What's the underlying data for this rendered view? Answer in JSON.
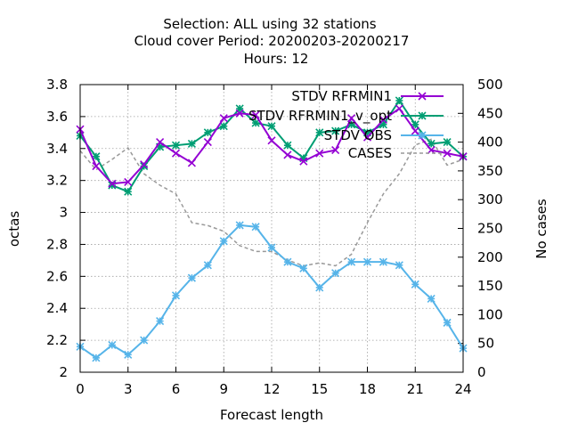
{
  "title_lines": [
    "Selection: ALL using    32 stations",
    "Cloud cover   Period: 20200203-20200217",
    "Hours:  12"
  ],
  "chart_data": {
    "type": "line",
    "xlabel": "Forecast length",
    "ylabel": "octas",
    "y2label": "No cases",
    "xlim": [
      0,
      24
    ],
    "ylim": [
      2.0,
      3.8
    ],
    "y2lim": [
      0,
      500
    ],
    "xticks": [
      "0",
      "3",
      "6",
      "9",
      "12",
      "15",
      "18",
      "21",
      "24"
    ],
    "yticks": [
      "2",
      "2.2",
      "2.4",
      "2.6",
      "2.8",
      "3",
      "3.2",
      "3.4",
      "3.6",
      "3.8"
    ],
    "y2ticks": [
      "0",
      "50",
      "100",
      "150",
      "200",
      "250",
      "300",
      "350",
      "400",
      "450",
      "500"
    ],
    "grid": true,
    "legend_position": "top-right",
    "x": [
      0,
      1,
      2,
      3,
      4,
      5,
      6,
      7,
      8,
      9,
      10,
      11,
      12,
      13,
      14,
      15,
      16,
      17,
      18,
      19,
      20,
      21,
      22,
      23,
      24
    ],
    "series": [
      {
        "name": "STDV RFRMIN1",
        "color": "#9400d3",
        "marker": "x-cross",
        "values": [
          3.52,
          3.29,
          3.18,
          3.19,
          3.3,
          3.44,
          3.37,
          3.31,
          3.44,
          3.59,
          3.62,
          3.61,
          3.45,
          3.36,
          3.32,
          3.37,
          3.39,
          3.59,
          3.47,
          3.58,
          3.65,
          3.51,
          3.39,
          3.37,
          3.35
        ]
      },
      {
        "name": "STDV RFRMIN1_v_opt",
        "color": "#009e73",
        "marker": "x-star",
        "values": [
          3.48,
          3.35,
          3.17,
          3.13,
          3.29,
          3.41,
          3.42,
          3.43,
          3.5,
          3.54,
          3.65,
          3.56,
          3.54,
          3.42,
          3.34,
          3.5,
          3.51,
          3.55,
          3.5,
          3.55,
          3.7,
          3.55,
          3.43,
          3.44,
          3.35
        ]
      },
      {
        "name": "STDV OBS",
        "color": "#56b4e9",
        "marker": "star",
        "values": [
          2.16,
          2.09,
          2.17,
          2.11,
          2.2,
          2.32,
          2.48,
          2.59,
          2.67,
          2.82,
          2.92,
          2.91,
          2.78,
          2.69,
          2.65,
          2.53,
          2.62,
          2.69,
          2.69,
          2.69,
          2.67,
          2.55,
          2.46,
          2.31,
          2.15
        ]
      },
      {
        "name": "CASES",
        "color": "#999999",
        "axis": "y2",
        "dashed": true,
        "values": [
          385,
          352,
          370,
          390,
          345,
          325,
          310,
          260,
          255,
          245,
          220,
          210,
          210,
          195,
          185,
          190,
          185,
          205,
          260,
          310,
          345,
          395,
          405,
          360,
          370
        ]
      }
    ]
  }
}
